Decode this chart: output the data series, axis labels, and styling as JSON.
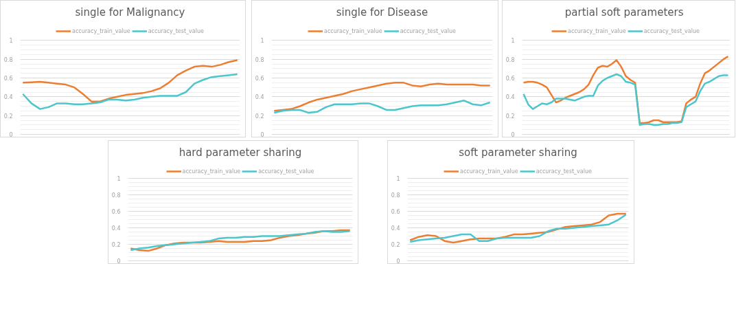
{
  "chart_data": [
    {
      "type": "line",
      "title": "single for Malignancy",
      "legend": "top",
      "grid": "y",
      "tick_labels": "y",
      "ylim": [
        0,
        1
      ],
      "yticks": [
        0,
        0.2,
        0.4,
        0.6,
        0.8,
        1
      ],
      "categories": [
        null,
        null,
        null,
        null,
        null,
        null,
        null,
        null,
        null,
        null,
        null,
        null,
        null,
        null,
        null,
        null,
        null,
        null,
        null,
        null,
        null,
        null,
        null,
        null,
        null,
        null
      ],
      "series": [
        {
          "name": "accuracy_train_value",
          "color": "#ed7d31",
          "values": [
            0.55,
            0.555,
            0.56,
            0.55,
            0.54,
            0.53,
            0.5,
            0.43,
            0.35,
            0.35,
            0.38,
            0.4,
            0.42,
            0.43,
            0.44,
            0.46,
            0.49,
            0.55,
            0.63,
            0.68,
            0.72,
            0.73,
            0.72,
            0.74,
            0.77,
            0.79
          ]
        },
        {
          "name": "accuracy_test_value",
          "color": "#4bc6cc",
          "values": [
            0.43,
            0.33,
            0.27,
            0.29,
            0.33,
            0.33,
            0.32,
            0.32,
            0.33,
            0.34,
            0.37,
            0.37,
            0.36,
            0.37,
            0.39,
            0.4,
            0.41,
            0.41,
            0.41,
            0.45,
            0.54,
            0.58,
            0.61,
            0.62,
            0.63,
            0.64
          ]
        }
      ]
    },
    {
      "type": "line",
      "title": "single for Disease",
      "legend": "top",
      "grid": "y",
      "tick_labels": "y",
      "ylim": [
        0,
        1
      ],
      "yticks": [
        0,
        0.2,
        0.4,
        0.6,
        0.8,
        1
      ],
      "categories": [
        null,
        null,
        null,
        null,
        null,
        null,
        null,
        null,
        null,
        null,
        null,
        null,
        null,
        null,
        null,
        null,
        null,
        null,
        null,
        null,
        null,
        null,
        null,
        null,
        null,
        null
      ],
      "series": [
        {
          "name": "accuracy_train_value",
          "color": "#ed7d31",
          "values": [
            0.25,
            0.26,
            0.27,
            0.3,
            0.34,
            0.37,
            0.39,
            0.41,
            0.43,
            0.46,
            0.48,
            0.5,
            0.52,
            0.54,
            0.55,
            0.55,
            0.52,
            0.51,
            0.53,
            0.54,
            0.53,
            0.53,
            0.53,
            0.53,
            0.52,
            0.52
          ]
        },
        {
          "name": "accuracy_test_value",
          "color": "#4bc6cc",
          "values": [
            0.23,
            0.25,
            0.26,
            0.26,
            0.23,
            0.24,
            0.29,
            0.32,
            0.32,
            0.32,
            0.33,
            0.33,
            0.3,
            0.26,
            0.26,
            0.28,
            0.3,
            0.31,
            0.31,
            0.31,
            0.32,
            0.34,
            0.36,
            0.32,
            0.31,
            0.34
          ]
        }
      ]
    },
    {
      "type": "line",
      "title": "partial  soft parameters",
      "legend": "top",
      "grid": "y",
      "tick_labels": "y",
      "ylim": [
        0,
        1
      ],
      "yticks": [
        0,
        0.2,
        0.4,
        0.6,
        0.8,
        1
      ],
      "categories": [
        null,
        null,
        null,
        null,
        null,
        null,
        null,
        null,
        null,
        null,
        null,
        null,
        null,
        null,
        null,
        null,
        null,
        null,
        null,
        null,
        null,
        null,
        null,
        null,
        null,
        null,
        null,
        null,
        null,
        null,
        null,
        null,
        null,
        null,
        null,
        null,
        null,
        null,
        null,
        null,
        null,
        null,
        null,
        null,
        null
      ],
      "series": [
        {
          "name": "accuracy_train_value",
          "color": "#ed7d31",
          "values": [
            0.55,
            0.56,
            0.56,
            0.55,
            0.53,
            0.5,
            0.42,
            0.34,
            0.36,
            0.39,
            0.41,
            0.43,
            0.45,
            0.48,
            0.53,
            0.63,
            0.71,
            0.73,
            0.72,
            0.75,
            0.79,
            0.72,
            0.62,
            0.58,
            0.55,
            0.12,
            0.12,
            0.13,
            0.15,
            0.15,
            0.13,
            0.13,
            0.13,
            0.13,
            0.14,
            0.33,
            0.37,
            0.4,
            0.54,
            0.65,
            0.68,
            0.72,
            0.76,
            0.8,
            0.83
          ]
        },
        {
          "name": "accuracy_test_value",
          "color": "#4bc6cc",
          "values": [
            0.43,
            0.32,
            0.27,
            0.3,
            0.33,
            0.32,
            0.34,
            0.38,
            0.38,
            0.38,
            0.37,
            0.36,
            0.38,
            0.4,
            0.41,
            0.41,
            0.52,
            0.57,
            0.6,
            0.62,
            0.64,
            0.62,
            0.56,
            0.55,
            0.53,
            0.1,
            0.11,
            0.11,
            0.1,
            0.1,
            0.11,
            0.11,
            0.12,
            0.12,
            0.13,
            0.29,
            0.32,
            0.35,
            0.46,
            0.54,
            0.56,
            0.59,
            0.62,
            0.63,
            0.63
          ]
        }
      ]
    },
    {
      "type": "line",
      "title": "hard parameter sharing",
      "legend": "top",
      "grid": "y",
      "tick_labels": "y",
      "ylim": [
        0,
        1
      ],
      "yticks": [
        0,
        0.2,
        0.4,
        0.6,
        0.8,
        1
      ],
      "categories": [
        null,
        null,
        null,
        null,
        null,
        null,
        null,
        null,
        null,
        null,
        null,
        null,
        null,
        null,
        null,
        null,
        null,
        null,
        null,
        null,
        null,
        null,
        null,
        null,
        null,
        null
      ],
      "series": [
        {
          "name": "accuracy_train_value",
          "color": "#ed7d31",
          "values": [
            0.15,
            0.13,
            0.12,
            0.15,
            0.19,
            0.21,
            0.22,
            0.22,
            0.22,
            0.23,
            0.24,
            0.23,
            0.23,
            0.23,
            0.24,
            0.24,
            0.25,
            0.28,
            0.3,
            0.31,
            0.33,
            0.34,
            0.36,
            0.36,
            0.37,
            0.37
          ]
        },
        {
          "name": "accuracy_test_value",
          "color": "#4bc6cc",
          "values": [
            0.13,
            0.15,
            0.16,
            0.18,
            0.19,
            0.2,
            0.21,
            0.22,
            0.23,
            0.24,
            0.27,
            0.28,
            0.28,
            0.29,
            0.29,
            0.3,
            0.3,
            0.3,
            0.31,
            0.32,
            0.33,
            0.35,
            0.36,
            0.35,
            0.35,
            0.36
          ]
        }
      ]
    },
    {
      "type": "line",
      "title": "soft parameter sharing",
      "legend": "top",
      "grid": "y",
      "tick_labels": "y",
      "ylim": [
        0,
        1
      ],
      "yticks": [
        0,
        0.2,
        0.4,
        0.6,
        0.8,
        1
      ],
      "categories": [
        null,
        null,
        null,
        null,
        null,
        null,
        null,
        null,
        null,
        null,
        null,
        null,
        null,
        null,
        null,
        null,
        null,
        null,
        null,
        null,
        null,
        null,
        null,
        null,
        null,
        null
      ],
      "series": [
        {
          "name": "accuracy_train_value",
          "color": "#ed7d31",
          "values": [
            0.25,
            0.29,
            0.31,
            0.3,
            0.24,
            0.22,
            0.24,
            0.26,
            0.27,
            0.27,
            0.27,
            0.29,
            0.32,
            0.32,
            0.33,
            0.34,
            0.35,
            0.38,
            0.41,
            0.42,
            0.43,
            0.44,
            0.47,
            0.55,
            0.57,
            0.57
          ]
        },
        {
          "name": "accuracy_test_value",
          "color": "#4bc6cc",
          "values": [
            0.23,
            0.25,
            0.26,
            0.27,
            0.28,
            0.3,
            0.32,
            0.32,
            0.24,
            0.24,
            0.27,
            0.28,
            0.28,
            0.28,
            0.28,
            0.3,
            0.36,
            0.39,
            0.39,
            0.4,
            0.41,
            0.42,
            0.43,
            0.44,
            0.49,
            0.56
          ]
        }
      ]
    }
  ]
}
